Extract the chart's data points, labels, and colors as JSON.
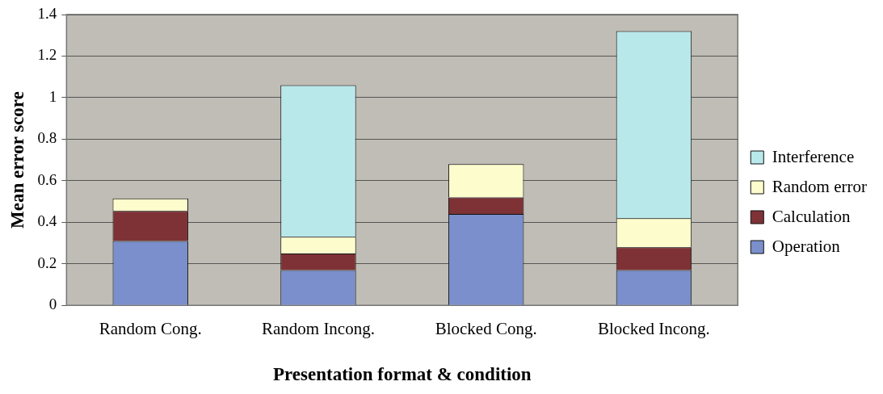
{
  "chart_data": {
    "type": "bar",
    "stacked": true,
    "xlabel": "Presentation format & condition",
    "ylabel": "Mean error score",
    "categories": [
      "Random Cong.",
      "Random Incong.",
      "Blocked Cong.",
      "Blocked Incong."
    ],
    "series": [
      {
        "name": "Operation",
        "color": "#7a8fcb",
        "values": [
          0.31,
          0.17,
          0.44,
          0.17
        ]
      },
      {
        "name": "Calculation",
        "color": "#7e3236",
        "values": [
          0.145,
          0.08,
          0.08,
          0.11
        ]
      },
      {
        "name": "Random error",
        "color": "#fdfccc",
        "values": [
          0.06,
          0.08,
          0.16,
          0.14
        ]
      },
      {
        "name": "Interference",
        "color": "#b8e8ea",
        "values": [
          null,
          0.73,
          null,
          0.9
        ]
      }
    ],
    "ylim": [
      0,
      1.4
    ],
    "yticks": [
      0,
      0.2,
      0.4,
      0.6,
      0.8,
      1,
      1.2,
      1.4
    ],
    "grid": "y",
    "legend": "right"
  }
}
